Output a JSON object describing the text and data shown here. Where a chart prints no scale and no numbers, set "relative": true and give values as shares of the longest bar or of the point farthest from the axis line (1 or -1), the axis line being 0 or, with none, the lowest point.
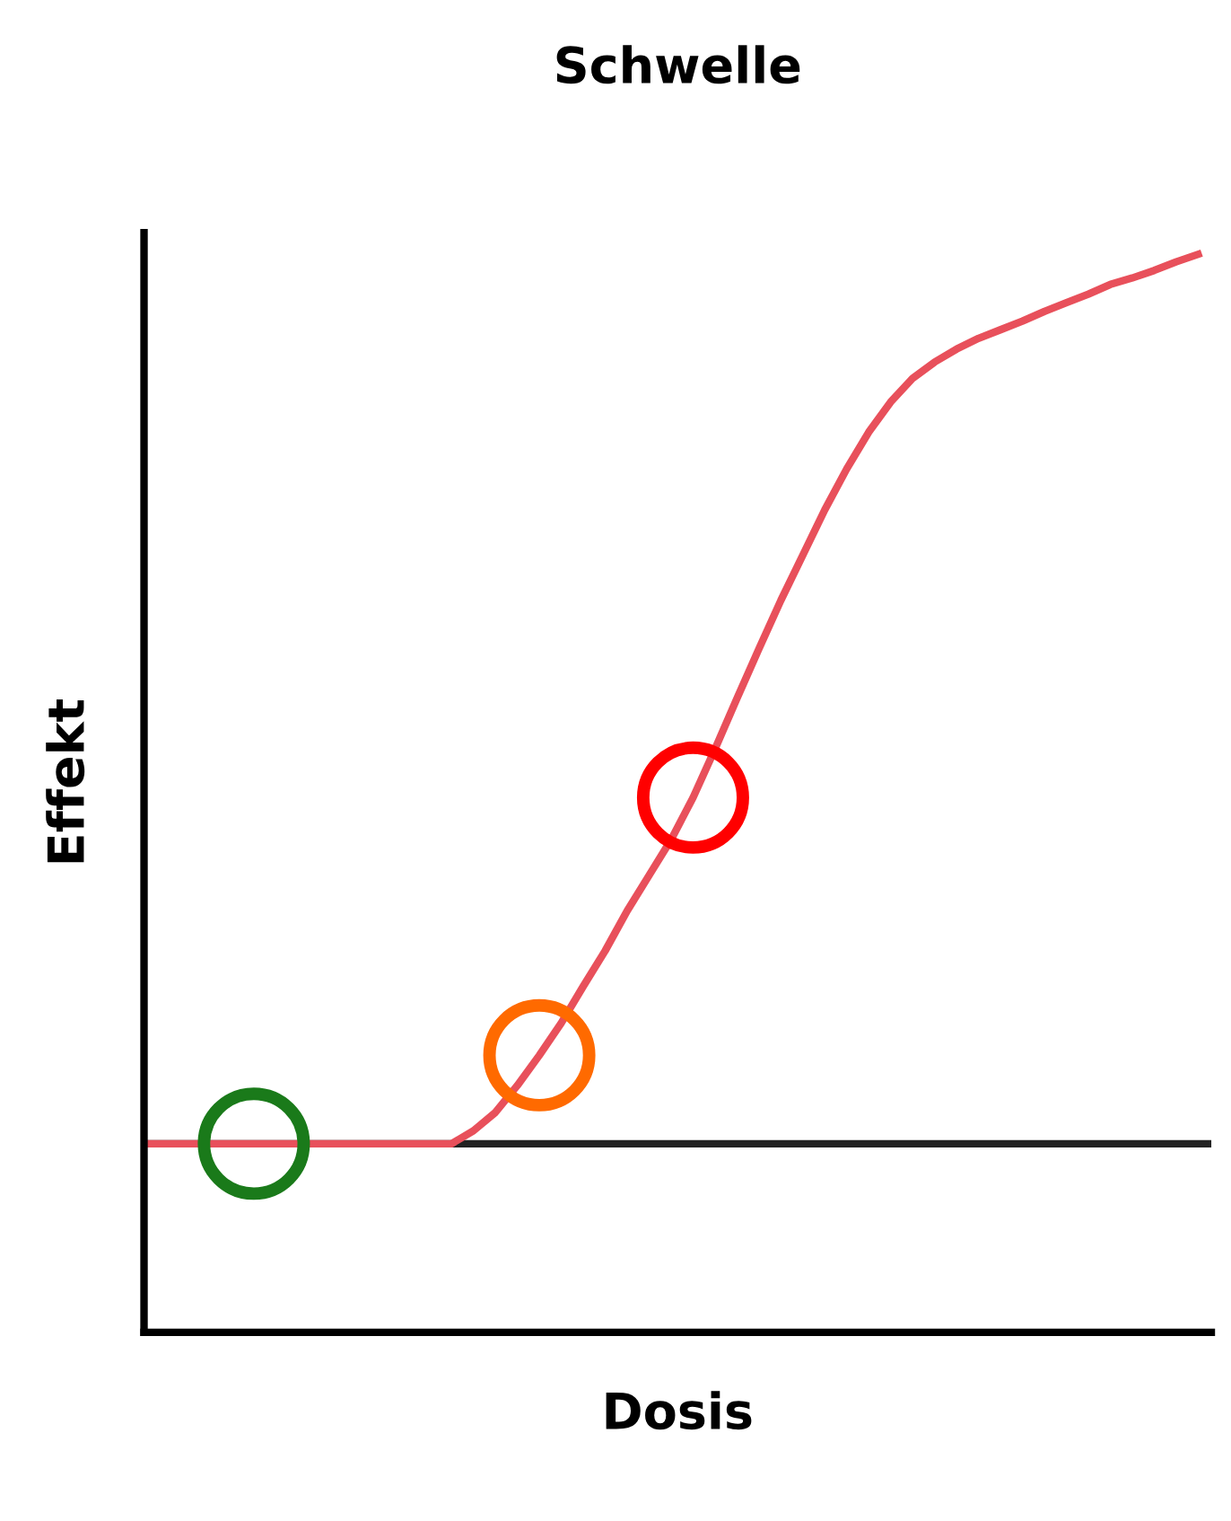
{
  "chart_data": {
    "type": "line",
    "title": "Schwelle",
    "xlabel": "Dosis",
    "ylabel": "Effekt",
    "relative": true,
    "grid": false,
    "legend": false,
    "categories": [
      null,
      null,
      null,
      null,
      null,
      null,
      null,
      null,
      null,
      null,
      null,
      null,
      null,
      null,
      null,
      null,
      null,
      null,
      null,
      null,
      null,
      null,
      null,
      null,
      null,
      null,
      null,
      null,
      null,
      null,
      null,
      null,
      null,
      null,
      null,
      null,
      null,
      null,
      null,
      null,
      null,
      null,
      null,
      null,
      null,
      null,
      null,
      null,
      null
    ],
    "ref_lines": [
      {
        "axis": "y",
        "value": 0.175,
        "color": "#222222"
      }
    ],
    "series": [
      {
        "color": "#e8505b",
        "colors": [
          null,
          null,
          null,
          null,
          null,
          "#1a7a1a",
          null,
          null,
          null,
          null,
          null,
          null,
          null,
          null,
          null,
          null,
          null,
          null,
          "#ff6a00",
          null,
          null,
          null,
          null,
          null,
          null,
          "#ff0000",
          null,
          null,
          null,
          null,
          null,
          null,
          null,
          null,
          null,
          null,
          null,
          null,
          null,
          null,
          null,
          null,
          null,
          null,
          null,
          null,
          null,
          null,
          null
        ],
        "line_style": "solid",
        "values": [
          0.175,
          0.175,
          0.175,
          0.175,
          0.175,
          0.175,
          0.175,
          0.175,
          0.175,
          0.175,
          0.175,
          0.175,
          0.175,
          0.175,
          0.175,
          0.187,
          0.204,
          0.229,
          0.257,
          0.287,
          0.321,
          0.354,
          0.391,
          0.424,
          0.457,
          0.496,
          0.541,
          0.588,
          0.634,
          0.679,
          0.721,
          0.763,
          0.801,
          0.835,
          0.863,
          0.885,
          0.9,
          0.912,
          0.922,
          0.93,
          0.938,
          0.947,
          0.955,
          0.963,
          0.972,
          0.978,
          0.985,
          0.993,
          1
        ]
      }
    ]
  }
}
